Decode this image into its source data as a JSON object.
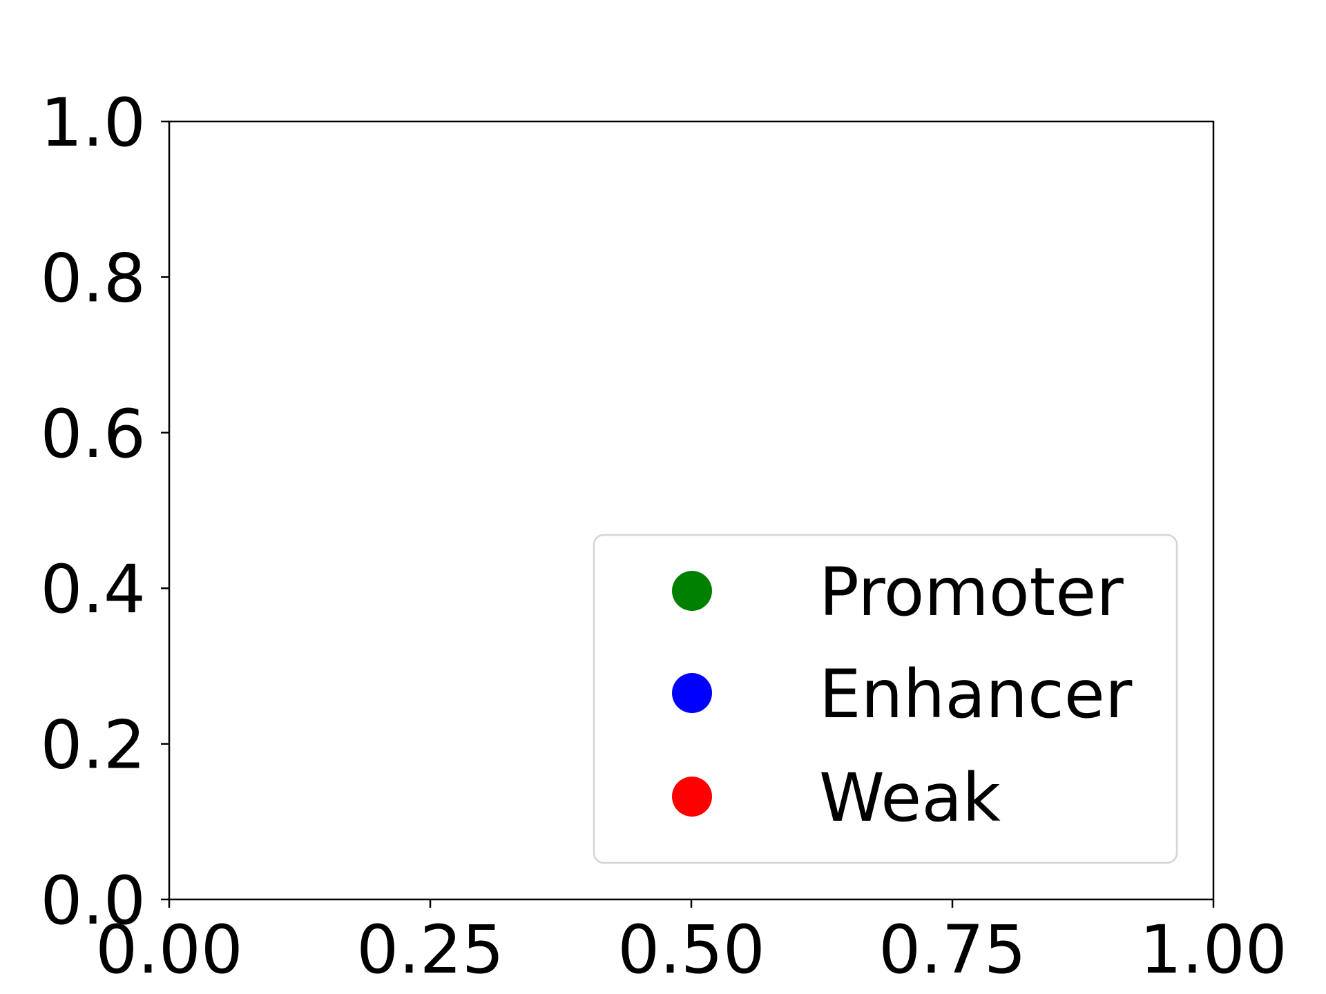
{
  "chart_data": {
    "type": "scatter",
    "title": "",
    "xlabel": "",
    "ylabel": "",
    "xlim": [
      0.0,
      1.0
    ],
    "ylim": [
      0.0,
      1.0
    ],
    "grid": false,
    "x_ticks": [
      "0.00",
      "0.25",
      "0.50",
      "0.75",
      "1.00"
    ],
    "y_ticks": [
      "0.0",
      "0.2",
      "0.4",
      "0.6",
      "0.8",
      "1.0"
    ],
    "legend_placement": "lower-right",
    "series": [
      {
        "name": "Promoter",
        "color": "#008000",
        "marker": "circle",
        "points": []
      },
      {
        "name": "Enhancer",
        "color": "#0000ff",
        "marker": "circle",
        "points": []
      },
      {
        "name": "Weak",
        "color": "#ff0000",
        "marker": "circle",
        "points": []
      }
    ]
  }
}
